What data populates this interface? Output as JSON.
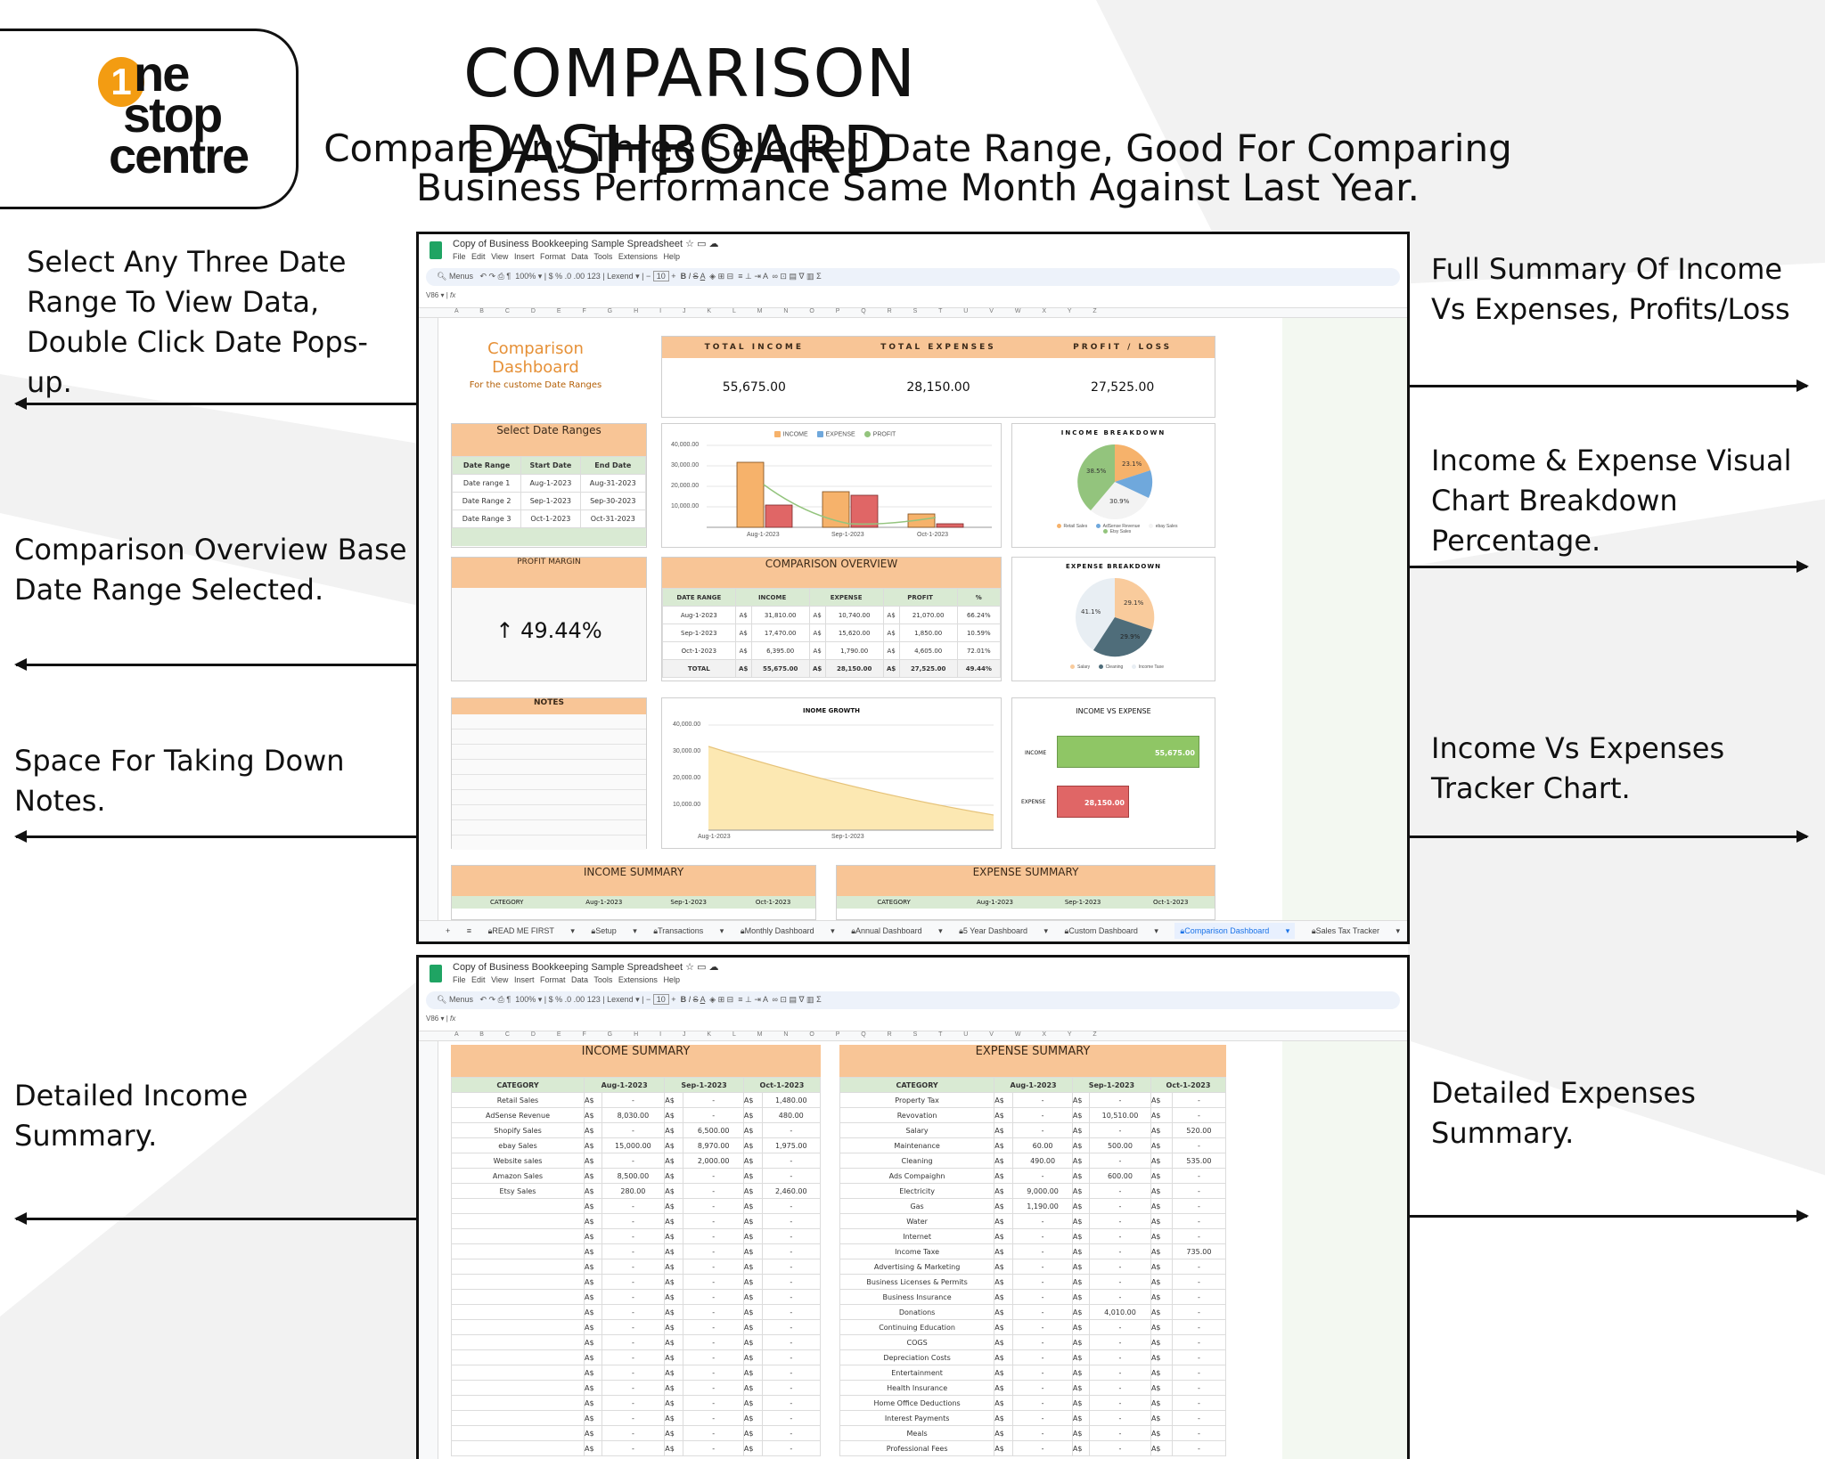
{
  "page": {
    "title": "COMPARISON DASHBOARD",
    "subtitle_line1": "Compare Any Three Selected Date Range, Good For Comparing",
    "subtitle_line2": "Business Performance Same Month Against Last Year."
  },
  "logo": {
    "one": "1",
    "word1": "ne",
    "word2": "stop",
    "word3": "centre"
  },
  "annotations": {
    "left": [
      "Select Any Three Date Range To View Data, Double Click Date Pops-up.",
      "Comparison Overview Base Date Range Selected.",
      "Space For Taking Down Notes.",
      "Detailed Income Summary."
    ],
    "right": [
      "Full Summary Of Income Vs Expenses, Profits/Loss",
      "Income & Expense Visual Chart Breakdown Percentage.",
      "Income Vs Expenses Tracker Chart.",
      "Detailed Expenses Summary."
    ]
  },
  "sheet": {
    "doc_title": "Copy of Business Bookkeeping Sample Spreadsheet",
    "menu": [
      "File",
      "Edit",
      "View",
      "Insert",
      "Format",
      "Data",
      "Tools",
      "Extensions",
      "Help"
    ],
    "toolbar": {
      "search": "Menus",
      "zoom": "100%",
      "font": "Lexend",
      "font_size": "10",
      "currency": "$",
      "percent": "%",
      "dec_dec": ".0",
      "dec_inc": ".00",
      "format_123": "123"
    },
    "cell_ref": "V86",
    "fx": "fx",
    "columns": "A B C D E F G H I J K L M N O P Q R S T U V W X Y Z",
    "tabs": [
      "READ ME FIRST",
      "Setup",
      "Transactions",
      "Monthly Dashboard",
      "Annual Dashboard",
      "5 Year Dashboard",
      "Custom Dashboard",
      "Comparison Dashboard",
      "Sales Tax Tracker"
    ],
    "active_tab": "Comparison Dashboard"
  },
  "dashboard": {
    "title": "Comparison Dashboard",
    "subtitle": "For the custome Date Ranges",
    "kpis": [
      {
        "label": "TOTAL INCOME",
        "value": "55,675.00"
      },
      {
        "label": "TOTAL EXPENSES",
        "value": "28,150.00"
      },
      {
        "label": "PROFIT / LOSS",
        "value": "27,525.00"
      }
    ],
    "date_ranges": {
      "title": "Select Date Ranges",
      "headers": [
        "Date Range",
        "Start Date",
        "End Date"
      ],
      "rows": [
        [
          "Date range 1",
          "Aug-1-2023",
          "Aug-31-2023"
        ],
        [
          "Date Range 2",
          "Sep-1-2023",
          "Sep-30-2023"
        ],
        [
          "Date Range 3",
          "Oct-1-2023",
          "Oct-31-2023"
        ]
      ]
    },
    "profit_margin": {
      "title": "PROFIT MARGIN",
      "arrow": "↑",
      "value": "49.44%"
    },
    "overview": {
      "title": "COMPARISON OVERVIEW",
      "headers": [
        "DATE RANGE",
        "INCOME",
        "EXPENSE",
        "PROFIT",
        "%"
      ],
      "currency": "A$",
      "rows": [
        [
          "Aug-1-2023",
          "31,810.00",
          "10,740.00",
          "21,070.00",
          "66.24%"
        ],
        [
          "Sep-1-2023",
          "17,470.00",
          "15,620.00",
          "1,850.00",
          "10.59%"
        ],
        [
          "Oct-1-2023",
          "6,395.00",
          "1,790.00",
          "4,605.00",
          "72.01%"
        ]
      ],
      "total": [
        "TOTAL",
        "55,675.00",
        "28,150.00",
        "27,525.00",
        "49.44%"
      ]
    },
    "notes": {
      "title": "NOTES"
    },
    "income_vs_expense": {
      "title": "INCOME VS EXPENSE",
      "income_label": "INCOME",
      "income_value": "55,675.00",
      "expense_label": "EXPENSE",
      "expense_value": "28,150.00"
    },
    "income_summary": {
      "title": "INCOME SUMMARY",
      "headers": [
        "CATEGORY",
        "Aug-1-2023",
        "Sep-1-2023",
        "Oct-1-2023"
      ],
      "rows": [
        [
          "Retail Sales",
          "-",
          "-",
          "1,480.00"
        ],
        [
          "AdSense Revenue",
          "8,030.00",
          "-",
          "480.00"
        ],
        [
          "Shopify Sales",
          "-",
          "6,500.00",
          "-"
        ],
        [
          "ebay Sales",
          "15,000.00",
          "8,970.00",
          "1,975.00"
        ],
        [
          "Website sales",
          "-",
          "2,000.00",
          "-"
        ],
        [
          "Amazon Sales",
          "8,500.00",
          "-",
          "-"
        ],
        [
          "Etsy Sales",
          "280.00",
          "-",
          "2,460.00"
        ],
        [
          "",
          "-",
          "-",
          "-"
        ],
        [
          "",
          "-",
          "-",
          "-"
        ],
        [
          "",
          "-",
          "-",
          "-"
        ],
        [
          "",
          "-",
          "-",
          "-"
        ],
        [
          "",
          "-",
          "-",
          "-"
        ],
        [
          "",
          "-",
          "-",
          "-"
        ],
        [
          "",
          "-",
          "-",
          "-"
        ],
        [
          "",
          "-",
          "-",
          "-"
        ],
        [
          "",
          "-",
          "-",
          "-"
        ],
        [
          "",
          "-",
          "-",
          "-"
        ],
        [
          "",
          "-",
          "-",
          "-"
        ],
        [
          "",
          "-",
          "-",
          "-"
        ],
        [
          "",
          "-",
          "-",
          "-"
        ],
        [
          "",
          "-",
          "-",
          "-"
        ],
        [
          "",
          "-",
          "-",
          "-"
        ],
        [
          "",
          "-",
          "-",
          "-"
        ],
        [
          "",
          "-",
          "-",
          "-"
        ]
      ]
    },
    "expense_summary": {
      "title": "EXPENSE SUMMARY",
      "headers": [
        "CATEGORY",
        "Aug-1-2023",
        "Sep-1-2023",
        "Oct-1-2023"
      ],
      "rows": [
        [
          "Property Tax",
          "-",
          "-",
          "-"
        ],
        [
          "Revovation",
          "-",
          "10,510.00",
          "-"
        ],
        [
          "Salary",
          "-",
          "-",
          "520.00"
        ],
        [
          "Maintenance",
          "60.00",
          "500.00",
          "-"
        ],
        [
          "Cleaning",
          "490.00",
          "-",
          "535.00"
        ],
        [
          "Ads Compaighn",
          "-",
          "600.00",
          "-"
        ],
        [
          "Electricity",
          "9,000.00",
          "-",
          "-"
        ],
        [
          "Gas",
          "1,190.00",
          "-",
          "-"
        ],
        [
          "Water",
          "-",
          "-",
          "-"
        ],
        [
          "Internet",
          "-",
          "-",
          "-"
        ],
        [
          "Income Taxe",
          "-",
          "-",
          "735.00"
        ],
        [
          "Advertising & Marketing",
          "-",
          "-",
          "-"
        ],
        [
          "Business Licenses & Permits",
          "-",
          "-",
          "-"
        ],
        [
          "Business Insurance",
          "-",
          "-",
          "-"
        ],
        [
          "Donations",
          "-",
          "4,010.00",
          "-"
        ],
        [
          "Continuing Education",
          "-",
          "-",
          "-"
        ],
        [
          "COGS",
          "-",
          "-",
          "-"
        ],
        [
          "Depreciation Costs",
          "-",
          "-",
          "-"
        ],
        [
          "Entertainment",
          "-",
          "-",
          "-"
        ],
        [
          "Health Insurance",
          "-",
          "-",
          "-"
        ],
        [
          "Home Office Deductions",
          "-",
          "-",
          "-"
        ],
        [
          "Interest Payments",
          "-",
          "-",
          "-"
        ],
        [
          "Meals",
          "-",
          "-",
          "-"
        ],
        [
          "Professional Fees",
          "-",
          "-",
          "-"
        ]
      ]
    }
  },
  "colors": {
    "header_orange": "#f8c596",
    "header_green": "#d9ead3",
    "income": "#f6b26b",
    "expense": "#e06666",
    "profit": "#93c47d",
    "adsense": "#6fa8dc",
    "cleaning": "#4f6d7a",
    "income_tax": "#e8eef3",
    "logo_orange": "#f39c12"
  },
  "chart_data": [
    {
      "type": "bar",
      "title": "",
      "categories": [
        "Aug-1-2023",
        "Sep-1-2023",
        "Oct-1-2023"
      ],
      "series": [
        {
          "name": "INCOME",
          "values": [
            31810,
            17470,
            6395
          ]
        },
        {
          "name": "EXPENSE",
          "values": [
            10740,
            15620,
            1790
          ]
        },
        {
          "name": "PROFIT",
          "type": "line",
          "values": [
            21070,
            1850,
            4605
          ]
        }
      ],
      "yticks": [
        "40,000.00",
        "30,000.00",
        "20,000.00",
        "10,000.00",
        "-"
      ],
      "ylim": [
        0,
        40000
      ],
      "legend_position": "top"
    },
    {
      "type": "pie",
      "title": "INCOME BREAKDOWN",
      "labels": [
        "Retail Sales",
        "AdSense Revenue",
        "ebay Sales",
        "Etsy Sales"
      ],
      "values": [
        23.1,
        7.5,
        30.9,
        38.5
      ],
      "value_labels": [
        "23.1%",
        "",
        "30.9%",
        "38.5%"
      ]
    },
    {
      "type": "pie",
      "title": "EXPENSE BREAKDOWN",
      "labels": [
        "Salary",
        "Cleaning",
        "Income Taxe"
      ],
      "values": [
        29.1,
        29.9,
        41.1
      ],
      "value_labels": [
        "29.1%",
        "29.9%",
        "41.1%"
      ]
    },
    {
      "type": "area",
      "title": "INOME GROWTH",
      "x": [
        "Aug-1-2023",
        "Sep-1-2023",
        "Oct-1-2023"
      ],
      "xticks": [
        "Aug-1-2023",
        "Sep-1-2023"
      ],
      "values": [
        31810,
        17470,
        6395
      ],
      "yticks": [
        "40,000.00",
        "30,000.00",
        "20,000.00",
        "10,000.00",
        "-"
      ],
      "ylim": [
        0,
        40000
      ]
    },
    {
      "type": "bar",
      "title": "INCOME VS EXPENSE",
      "orientation": "horizontal",
      "categories": [
        "INCOME",
        "EXPENSE"
      ],
      "values": [
        55675,
        28150
      ]
    }
  ]
}
